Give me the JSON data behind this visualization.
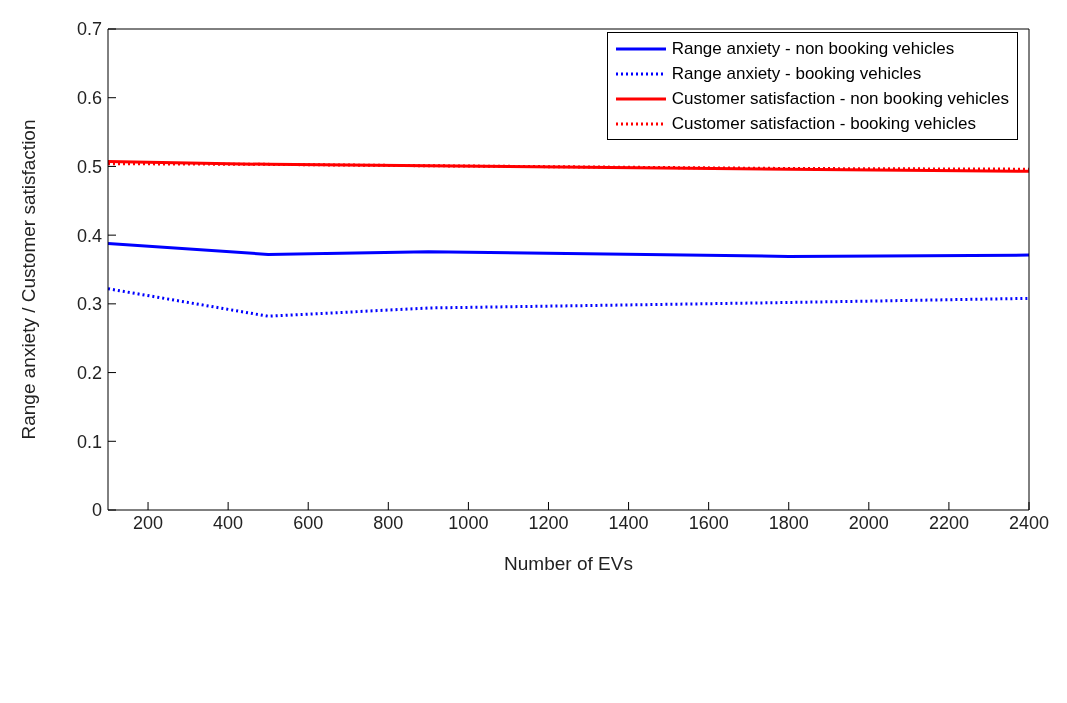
{
  "chart_data": {
    "type": "line",
    "xlabel": "Number of EVs",
    "ylabel": "Range anxiety / Customer satisfaction",
    "x": [
      100,
      500,
      900,
      1800,
      2400
    ],
    "xlim": [
      100,
      2400
    ],
    "xticks": [
      200,
      400,
      600,
      800,
      1000,
      1200,
      1400,
      1600,
      1800,
      2000,
      2200,
      2400
    ],
    "ylim": [
      0,
      0.7
    ],
    "yticks": [
      0,
      0.1,
      0.2,
      0.3,
      0.4,
      0.5,
      0.6,
      0.7
    ],
    "grid": false,
    "legend": "top right",
    "marker": "none",
    "series": [
      {
        "name": "Range anxiety - non booking vehicles",
        "color": "#0000ff",
        "line_style": "solid",
        "values": [
          0.388,
          0.372,
          0.376,
          0.369,
          0.371
        ]
      },
      {
        "name": "Range anxiety - booking vehicles",
        "color": "#0000ff",
        "line_style": "dotted",
        "values": [
          0.322,
          0.282,
          0.294,
          0.302,
          0.308
        ]
      },
      {
        "name": "Customer satisfaction - non booking vehicles",
        "color": "#ff0000",
        "line_style": "solid",
        "values": [
          0.507,
          0.503,
          0.501,
          0.496,
          0.493
        ]
      },
      {
        "name": "Customer satisfaction - booking vehicles",
        "color": "#ff0000",
        "line_style": "dotted",
        "values": [
          0.504,
          0.503,
          0.501,
          0.497,
          0.496
        ]
      }
    ]
  }
}
